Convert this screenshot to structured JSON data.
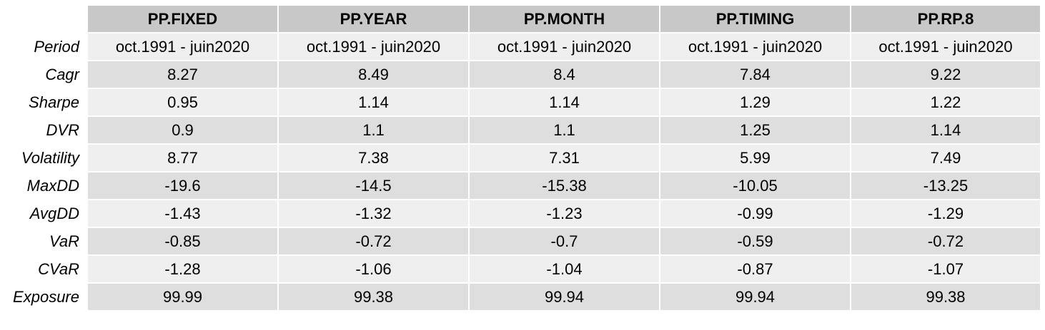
{
  "chart_data": {
    "type": "table",
    "columns": [
      "PP.FIXED",
      "PP.YEAR",
      "PP.MONTH",
      "PP.TIMING",
      "PP.RP.8"
    ],
    "rows": [
      {
        "label": "Period",
        "values": [
          "oct.1991 - juin2020",
          "oct.1991 - juin2020",
          "oct.1991 - juin2020",
          "oct.1991 - juin2020",
          "oct.1991 - juin2020"
        ]
      },
      {
        "label": "Cagr",
        "values": [
          "8.27",
          "8.49",
          "8.4",
          "7.84",
          "9.22"
        ]
      },
      {
        "label": "Sharpe",
        "values": [
          "0.95",
          "1.14",
          "1.14",
          "1.29",
          "1.22"
        ]
      },
      {
        "label": "DVR",
        "values": [
          "0.9",
          "1.1",
          "1.1",
          "1.25",
          "1.14"
        ]
      },
      {
        "label": "Volatility",
        "values": [
          "8.77",
          "7.38",
          "7.31",
          "5.99",
          "7.49"
        ]
      },
      {
        "label": "MaxDD",
        "values": [
          "-19.6",
          "-14.5",
          "-15.38",
          "-10.05",
          "-13.25"
        ]
      },
      {
        "label": "AvgDD",
        "values": [
          "-1.43",
          "-1.32",
          "-1.23",
          "-0.99",
          "-1.29"
        ]
      },
      {
        "label": "VaR",
        "values": [
          "-0.85",
          "-0.72",
          "-0.7",
          "-0.59",
          "-0.72"
        ]
      },
      {
        "label": "CVaR",
        "values": [
          "-1.28",
          "-1.06",
          "-1.04",
          "-0.87",
          "-1.07"
        ]
      },
      {
        "label": "Exposure",
        "values": [
          "99.99",
          "99.38",
          "99.94",
          "99.94",
          "99.38"
        ]
      }
    ]
  },
  "colors": {
    "header_background": "#c8c8c8",
    "row_light": "#efefef",
    "row_dark": "#dedede",
    "grid_lines": "#ffffff"
  }
}
